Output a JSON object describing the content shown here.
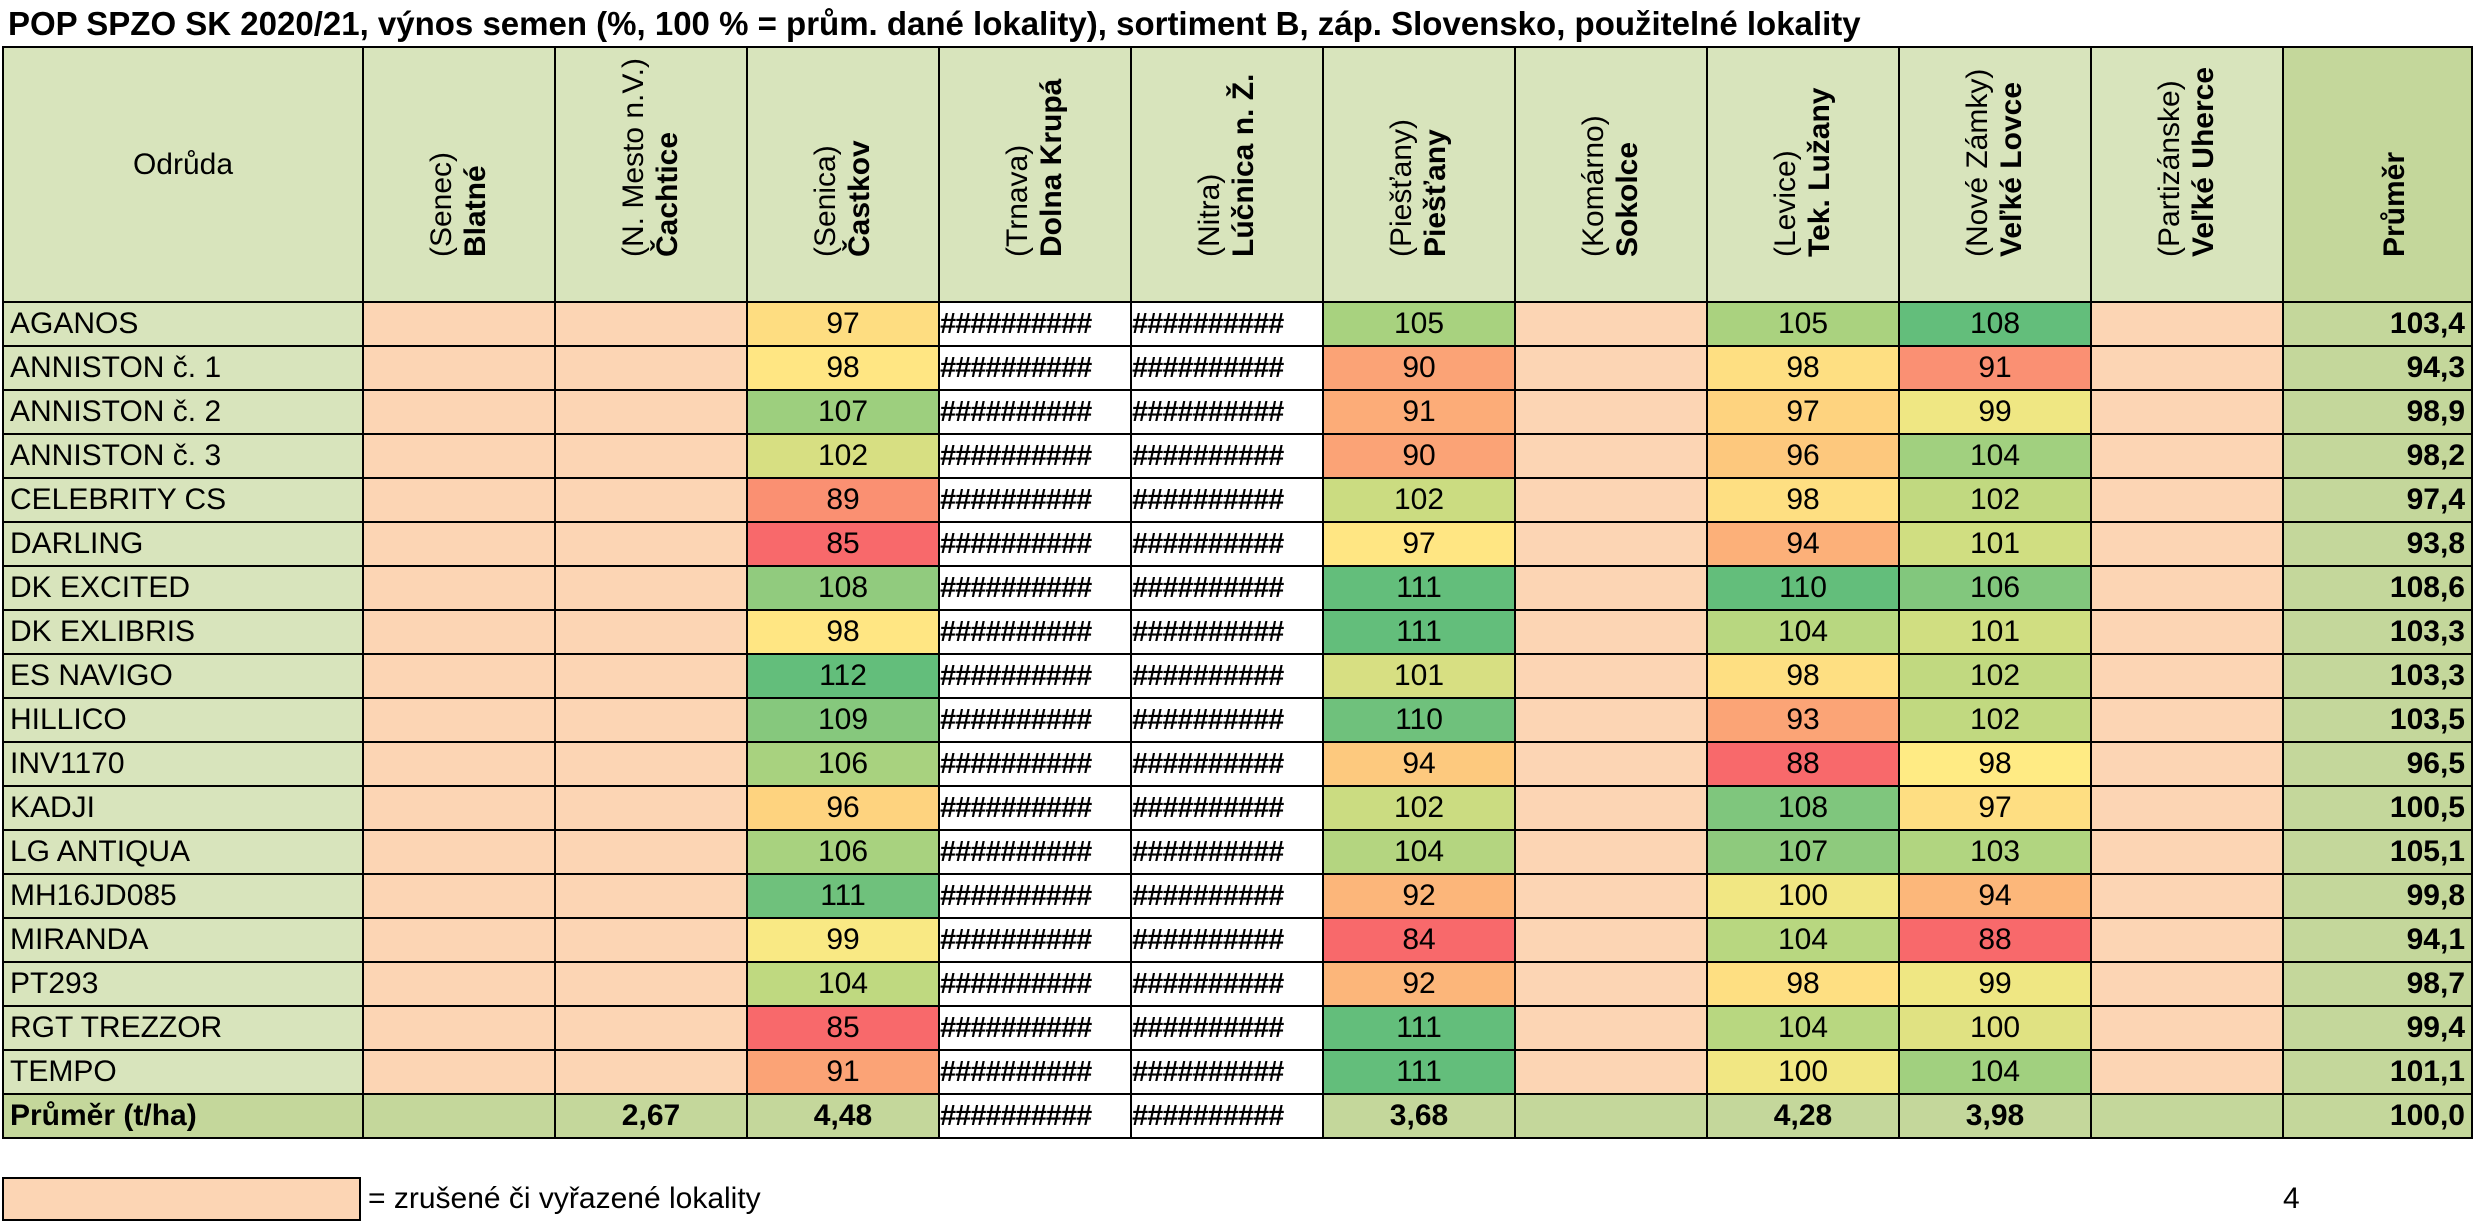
{
  "title": "POP SPZO SK 2020/21, výnos semen (%, 100 % = prům. dané lokality), sortiment B, záp. Slovensko, použitelné lokality",
  "table": {
    "variety_header": "Odrůda",
    "average_header": "Průměr",
    "columns": [
      {
        "name": "Blatné",
        "district": "(Senec)",
        "status": "excluded"
      },
      {
        "name": "Čachtice",
        "district": "(N. Mesto n.V.)",
        "status": "excluded"
      },
      {
        "name": "Častkov",
        "district": "(Senica)",
        "status": "used"
      },
      {
        "name": "Dolna Krupá",
        "district": "(Trnava)",
        "status": "overflow"
      },
      {
        "name": "Lúčnica n. Ž.",
        "district": "(Nitra)",
        "status": "overflow"
      },
      {
        "name": "Piešťany",
        "district": "(Piešťany)",
        "status": "used"
      },
      {
        "name": "Sokolce",
        "district": "(Komárno)",
        "status": "excluded"
      },
      {
        "name": "Tek. Lužany",
        "district": "(Levice)",
        "status": "used"
      },
      {
        "name": "Veľké Lovce",
        "district": "(Nové Zámky)",
        "status": "used"
      },
      {
        "name": "Veľké Uherce",
        "district": "(Partizánske)",
        "status": "excluded"
      }
    ],
    "overflow_text": "##########",
    "rows": [
      {
        "variety": "AGANOS",
        "castkov": "97",
        "piestany": "105",
        "tek_luzany": "105",
        "velke_lovce": "108",
        "average": "103,4"
      },
      {
        "variety": "ANNISTON   č. 1",
        "castkov": "98",
        "piestany": "90",
        "tek_luzany": "98",
        "velke_lovce": "91",
        "average": "94,3"
      },
      {
        "variety": "ANNISTON   č. 2",
        "castkov": "107",
        "piestany": "91",
        "tek_luzany": "97",
        "velke_lovce": "99",
        "average": "98,9"
      },
      {
        "variety": "ANNISTON   č. 3",
        "castkov": "102",
        "piestany": "90",
        "tek_luzany": "96",
        "velke_lovce": "104",
        "average": "98,2"
      },
      {
        "variety": "CELEBRITY CS",
        "castkov": "89",
        "piestany": "102",
        "tek_luzany": "98",
        "velke_lovce": "102",
        "average": "97,4"
      },
      {
        "variety": "DARLING",
        "castkov": "85",
        "piestany": "97",
        "tek_luzany": "94",
        "velke_lovce": "101",
        "average": "93,8"
      },
      {
        "variety": "DK EXCITED",
        "castkov": "108",
        "piestany": "111",
        "tek_luzany": "110",
        "velke_lovce": "106",
        "average": "108,6"
      },
      {
        "variety": "DK EXLIBRIS",
        "castkov": "98",
        "piestany": "111",
        "tek_luzany": "104",
        "velke_lovce": "101",
        "average": "103,3"
      },
      {
        "variety": "ES NAVIGO",
        "castkov": "112",
        "piestany": "101",
        "tek_luzany": "98",
        "velke_lovce": "102",
        "average": "103,3"
      },
      {
        "variety": "HILLICO",
        "castkov": "109",
        "piestany": "110",
        "tek_luzany": "93",
        "velke_lovce": "102",
        "average": "103,5"
      },
      {
        "variety": "INV1170",
        "castkov": "106",
        "piestany": "94",
        "tek_luzany": "88",
        "velke_lovce": "98",
        "average": "96,5"
      },
      {
        "variety": "KADJI",
        "castkov": "96",
        "piestany": "102",
        "tek_luzany": "108",
        "velke_lovce": "97",
        "average": "100,5"
      },
      {
        "variety": "LG ANTIQUA",
        "castkov": "106",
        "piestany": "104",
        "tek_luzany": "107",
        "velke_lovce": "103",
        "average": "105,1"
      },
      {
        "variety": "MH16JD085",
        "castkov": "111",
        "piestany": "92",
        "tek_luzany": "100",
        "velke_lovce": "94",
        "average": "99,8"
      },
      {
        "variety": "MIRANDA",
        "castkov": "99",
        "piestany": "84",
        "tek_luzany": "104",
        "velke_lovce": "88",
        "average": "94,1"
      },
      {
        "variety": "PT293",
        "castkov": "104",
        "piestany": "92",
        "tek_luzany": "98",
        "velke_lovce": "99",
        "average": "98,7"
      },
      {
        "variety": "RGT TREZZOR",
        "castkov": "85",
        "piestany": "111",
        "tek_luzany": "104",
        "velke_lovce": "100",
        "average": "99,4"
      },
      {
        "variety": "TEMPO",
        "castkov": "91",
        "piestany": "111",
        "tek_luzany": "100",
        "velke_lovce": "104",
        "average": "101,1"
      }
    ],
    "summary": {
      "label": "Průměr (t/ha)",
      "cachtice": "2,67",
      "castkov": "4,48",
      "piestany": "3,68",
      "tek_luzany": "4,28",
      "velke_lovce": "3,98",
      "average": "100,0"
    }
  },
  "legend": {
    "text": "= zrušené či vyřazené lokality",
    "swatch_color": "#fcd5b4"
  },
  "page_number": "4",
  "colors": {
    "header_bg": "#d8e4bc",
    "average_bg": "#c4d79b",
    "excluded_bg": "#fcd5b4",
    "scale_low": "#f8696b",
    "scale_mid": "#ffeb84",
    "scale_high": "#63be7b"
  }
}
